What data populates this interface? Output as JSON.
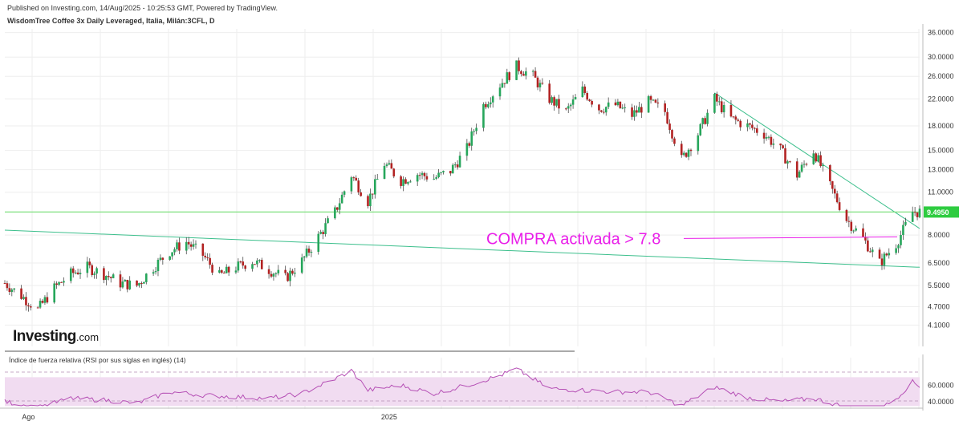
{
  "header": {
    "published": "Published on Investing.com, 14/Aug/2025 - 10:25:53 GMT, Powered by TradingView.",
    "instrument": "WisdomTree Coffee 3x Daily Leveraged, Italia, Milán:3CFL, D"
  },
  "logo": {
    "main": "Investing",
    "suffix": ".com"
  },
  "colors": {
    "up": "#26a65b",
    "down": "#b22222",
    "wick": "#333333",
    "trendline": "#3cbf8c",
    "hline": "#7ee07e",
    "price_tag": "#2ecc40",
    "annotation": "#e91ee9",
    "rsi_line": "#b54fb5",
    "rsi_band": "#f1dcf1",
    "grid": "#eeeeee"
  },
  "chart_data": [
    {
      "type": "candlestick",
      "title": "WisdomTree Coffee 3x Daily Leveraged, Italia, Milán:3CFL, D",
      "y_scale": "log",
      "ylim": [
        3.5,
        37.0
      ],
      "y_ticks": [
        "36.0000",
        "30.0000",
        "26.0000",
        "22.0000",
        "18.0000",
        "15.0000",
        "13.0000",
        "11.0000",
        "8.0000",
        "6.5000",
        "5.5000",
        "4.7000",
        "4.1000"
      ],
      "x_ticks": [
        "Ago",
        "2025"
      ],
      "x_range": [
        "2024-07-22",
        "2025-08-14"
      ],
      "series_points": [
        [
          "2024-07-22",
          5.6
        ],
        [
          "2024-07-29",
          5.1
        ],
        [
          "2024-08-05",
          4.6
        ],
        [
          "2024-08-12",
          5.4
        ],
        [
          "2024-08-19",
          6.0
        ],
        [
          "2024-08-26",
          6.3
        ],
        [
          "2024-09-02",
          6.0
        ],
        [
          "2024-09-09",
          5.6
        ],
        [
          "2024-09-16",
          5.5
        ],
        [
          "2024-09-23",
          6.3
        ],
        [
          "2024-09-30",
          7.1
        ],
        [
          "2024-10-07",
          7.6
        ],
        [
          "2024-10-14",
          6.9
        ],
        [
          "2024-10-21",
          5.9
        ],
        [
          "2024-10-28",
          6.3
        ],
        [
          "2024-11-04",
          6.6
        ],
        [
          "2024-11-11",
          6.2
        ],
        [
          "2024-11-18",
          5.8
        ],
        [
          "2024-11-25",
          6.6
        ],
        [
          "2024-12-02",
          7.9
        ],
        [
          "2024-12-09",
          9.5
        ],
        [
          "2024-12-16",
          12.5
        ],
        [
          "2024-12-23",
          10.3
        ],
        [
          "2024-12-30",
          13.6
        ],
        [
          "2025-01-06",
          12.0
        ],
        [
          "2025-01-13",
          12.6
        ],
        [
          "2025-01-20",
          12.2
        ],
        [
          "2025-01-27",
          12.9
        ],
        [
          "2025-02-03",
          15.2
        ],
        [
          "2025-02-10",
          21.0
        ],
        [
          "2025-02-17",
          24.5
        ],
        [
          "2025-02-24",
          28.0
        ],
        [
          "2025-03-03",
          26.0
        ],
        [
          "2025-03-10",
          22.0
        ],
        [
          "2025-03-17",
          20.0
        ],
        [
          "2025-03-24",
          23.5
        ],
        [
          "2025-03-31",
          20.5
        ],
        [
          "2025-04-07",
          21.0
        ],
        [
          "2025-04-14",
          19.5
        ],
        [
          "2025-04-21",
          21.5
        ],
        [
          "2025-04-28",
          20.0
        ],
        [
          "2025-05-05",
          14.0
        ],
        [
          "2025-05-12",
          17.0
        ],
        [
          "2025-05-19",
          22.0
        ],
        [
          "2025-05-26",
          19.0
        ],
        [
          "2025-06-02",
          18.0
        ],
        [
          "2025-06-09",
          17.0
        ],
        [
          "2025-06-16",
          15.0
        ],
        [
          "2025-06-23",
          12.5
        ],
        [
          "2025-06-30",
          15.0
        ],
        [
          "2025-07-07",
          11.5
        ],
        [
          "2025-07-14",
          9.0
        ],
        [
          "2025-07-21",
          7.8
        ],
        [
          "2025-07-28",
          6.5
        ],
        [
          "2025-08-04",
          7.5
        ],
        [
          "2025-08-11",
          9.5
        ]
      ],
      "last_price_label": "9.4950",
      "last_price": 9.495,
      "horizontal_line": 9.495,
      "trendlines": [
        {
          "name": "long-term support",
          "from": [
            "2024-07-22",
            8.3
          ],
          "to": [
            "2025-08-14",
            6.3
          ]
        },
        {
          "name": "descending resistance",
          "from": [
            "2025-05-19",
            23.0
          ],
          "to": [
            "2025-08-14",
            8.4
          ]
        }
      ],
      "annotation": {
        "text": "COMPRA activada > 7.8",
        "level": 7.8
      }
    },
    {
      "type": "line",
      "title": "Índice de fuerza relativa (RSI por sus siglas en inglés) (14)",
      "ylim": [
        35,
        90
      ],
      "y_ticks": [
        "60.0000",
        "40.0000"
      ],
      "band": [
        30,
        70
      ],
      "points": [
        [
          "2024-07-22",
          40
        ],
        [
          "2024-08-05",
          33
        ],
        [
          "2024-08-19",
          44
        ],
        [
          "2024-09-02",
          42
        ],
        [
          "2024-09-16",
          38
        ],
        [
          "2024-09-30",
          52
        ],
        [
          "2024-10-14",
          48
        ],
        [
          "2024-10-28",
          46
        ],
        [
          "2024-11-11",
          44
        ],
        [
          "2024-11-25",
          50
        ],
        [
          "2024-12-09",
          68
        ],
        [
          "2024-12-16",
          78
        ],
        [
          "2024-12-23",
          54
        ],
        [
          "2025-01-06",
          60
        ],
        [
          "2025-01-20",
          50
        ],
        [
          "2025-02-03",
          60
        ],
        [
          "2025-02-17",
          72
        ],
        [
          "2025-02-24",
          80
        ],
        [
          "2025-03-10",
          56
        ],
        [
          "2025-03-24",
          54
        ],
        [
          "2025-04-07",
          52
        ],
        [
          "2025-04-21",
          52
        ],
        [
          "2025-05-05",
          35
        ],
        [
          "2025-05-19",
          58
        ],
        [
          "2025-06-02",
          45
        ],
        [
          "2025-06-16",
          40
        ],
        [
          "2025-06-30",
          44
        ],
        [
          "2025-07-14",
          33
        ],
        [
          "2025-07-28",
          30
        ],
        [
          "2025-08-04",
          44
        ],
        [
          "2025-08-11",
          64
        ],
        [
          "2025-08-14",
          59
        ]
      ]
    }
  ]
}
